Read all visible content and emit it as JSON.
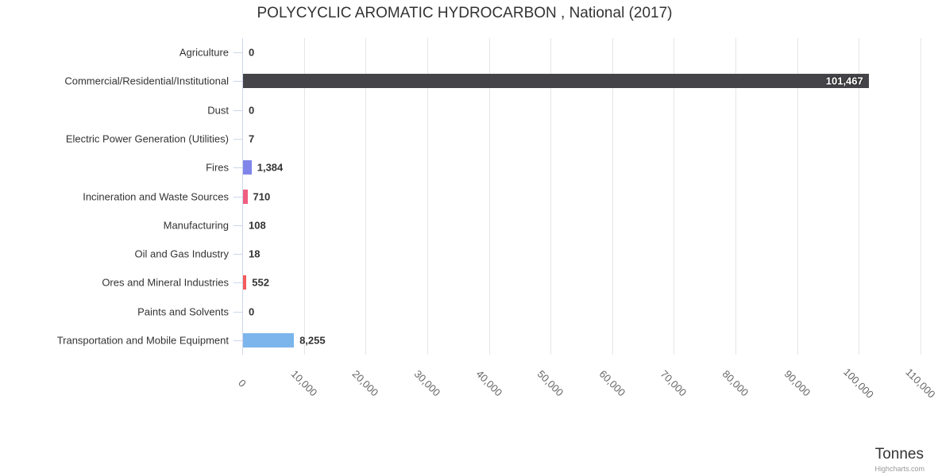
{
  "title": "POLYCYCLIC AROMATIC HYDROCARBON , National (2017)",
  "axis_title": "Tonnes",
  "credit": "Highcharts.com",
  "chart_data": {
    "type": "bar",
    "orientation": "horizontal",
    "title": "POLYCYCLIC AROMATIC HYDROCARBON , National (2017)",
    "xlabel": "Tonnes",
    "ylabel": "",
    "legend": false,
    "grid": true,
    "xlim": [
      0,
      110000
    ],
    "categories": [
      "Agriculture",
      "Commercial/Residential/Institutional",
      "Dust",
      "Electric Power Generation (Utilities)",
      "Fires",
      "Incineration and Waste Sources",
      "Manufacturing",
      "Oil and Gas Industry",
      "Ores and Mineral Industries",
      "Paints and Solvents",
      "Transportation and Mobile Equipment"
    ],
    "values": [
      0,
      101467,
      0,
      7,
      1384,
      710,
      108,
      18,
      552,
      0,
      8255
    ],
    "value_labels": [
      "0",
      "101,467",
      "0",
      "7",
      "1,384",
      "710",
      "108",
      "18",
      "552",
      "0",
      "8,255"
    ],
    "bar_colors": [
      "#7cb5ec",
      "#434348",
      "#90ed7d",
      "#f7a35c",
      "#8085e9",
      "#f15c80",
      "#e4d354",
      "#2b908f",
      "#f45b5b",
      "#91e8e1",
      "#7cb5ec"
    ],
    "x_ticks": {
      "values": [
        0,
        10000,
        20000,
        30000,
        40000,
        50000,
        60000,
        70000,
        80000,
        90000,
        100000,
        110000
      ],
      "labels": [
        "0",
        "10,000",
        "20,000",
        "30,000",
        "40,000",
        "50,000",
        "60,000",
        "70,000",
        "80,000",
        "90,000",
        "100,000",
        "110,000"
      ]
    }
  },
  "colors": {
    "grid": "#e6e6e6",
    "axis_line": "#ccd6eb",
    "title_text": "#333333",
    "category_text": "#333333",
    "tick_text": "#666666",
    "data_label_text": "#333333",
    "inside_label_text": "#ffffff",
    "credit_text": "#999999"
  }
}
